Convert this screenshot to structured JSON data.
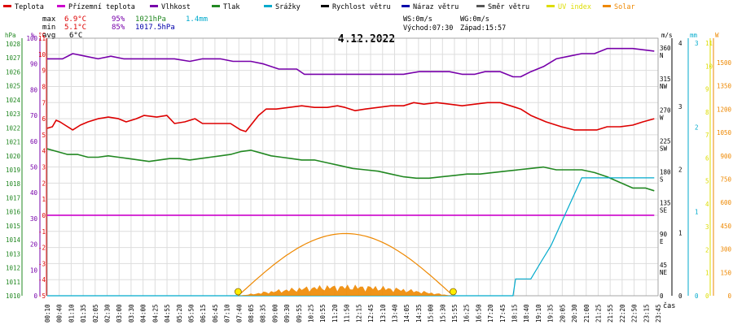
{
  "legend": [
    {
      "label": "Teplota",
      "color": "#dd0000"
    },
    {
      "label": "Přízemní teplota",
      "color": "#cc00cc"
    },
    {
      "label": "Vlhkost",
      "color": "#7700aa"
    },
    {
      "label": "Tlak",
      "color": "#228822"
    },
    {
      "label": "Srážky",
      "color": "#00aacc"
    },
    {
      "label": "Rychlost větru",
      "color": "#000000"
    },
    {
      "label": "Náraz větru",
      "color": "#0000aa"
    },
    {
      "label": "Směr větru",
      "color": "#555555"
    },
    {
      "label": "UV index",
      "color": "#dddd00"
    },
    {
      "label": "Solar",
      "color": "#ee8800"
    }
  ],
  "stats": {
    "max_label": "max",
    "max_temp": "6.9°C",
    "max_hum": "95%",
    "max_press": "1021hPa",
    "max_rain": "1.4mm",
    "min_label": "min",
    "min_temp": "5.1°C",
    "min_hum": "85%",
    "min_press": "1017.5hPa",
    "avg_label": "avg",
    "avg_temp": "6°C",
    "ws": "WS:0m/s",
    "wg": "WG:0m/s",
    "sunrise": "Východ:07:30",
    "sunset": "Západ:15:57"
  },
  "colors": {
    "temp": "#dd0000",
    "ground": "#cc00cc",
    "hum": "#7700aa",
    "press": "#228822",
    "rain": "#00aacc",
    "dir": "#555555",
    "uv": "#dddd00",
    "solar": "#ee8800",
    "grid": "#dddddd"
  },
  "chart_data": {
    "type": "line",
    "title": "4.12.2022",
    "x_label": "čas",
    "x_ticks": [
      "00:10",
      "00:40",
      "01:10",
      "01:35",
      "02:05",
      "02:30",
      "03:00",
      "03:30",
      "04:00",
      "04:25",
      "04:55",
      "05:20",
      "05:50",
      "06:15",
      "06:45",
      "07:10",
      "07:40",
      "08:05",
      "08:35",
      "09:00",
      "09:30",
      "09:55",
      "10:25",
      "10:55",
      "11:20",
      "11:50",
      "12:15",
      "12:45",
      "13:10",
      "13:40",
      "14:05",
      "14:35",
      "15:00",
      "15:30",
      "15:55",
      "16:25",
      "16:50",
      "17:20",
      "17:45",
      "18:15",
      "18:40",
      "19:10",
      "19:35",
      "20:05",
      "20:30",
      "21:00",
      "21:25",
      "21:55",
      "22:20",
      "22:50",
      "23:15",
      "23:45"
    ],
    "axes": {
      "pressure": {
        "unit": "hPa",
        "ticks": [
          "1028",
          "1027",
          "1026",
          "1025",
          "1024",
          "1023",
          "1022",
          "1021",
          "1020",
          "1019",
          "1018",
          "1017",
          "1016",
          "1015",
          "1014",
          "1013",
          "1012",
          "1011",
          "1010"
        ]
      },
      "humidity": {
        "unit": "%",
        "ticks": [
          "100",
          "90",
          "80",
          "70",
          "60",
          "50",
          "40",
          "30",
          "20",
          "10",
          "0"
        ]
      },
      "temperature": {
        "unit": "°C",
        "range": [
          -5,
          11
        ],
        "ticks": [
          "11",
          "10",
          "9",
          "8",
          "7",
          "6",
          "5",
          "4",
          "3",
          "2",
          "1",
          "0",
          "-1",
          "-2",
          "-3",
          "-4",
          "-5"
        ]
      },
      "wind_speed": {
        "unit": "m/s",
        "ticks": [
          "4",
          "3",
          "2",
          "1",
          "0"
        ]
      },
      "wind_dir": {
        "ticks": [
          "360\nN",
          "315\nNW",
          "270\nW",
          "225\nSW",
          "180\nS",
          "135\nSE",
          "90\nE",
          "45\nNE",
          "0"
        ]
      },
      "rain": {
        "unit": "mm",
        "ticks": [
          "3",
          "2",
          "1",
          "0"
        ]
      },
      "uv": {
        "ticks": [
          "11",
          "10",
          "9",
          "8",
          "7",
          "6",
          "5",
          "4",
          "3",
          "2",
          "1",
          "0"
        ]
      },
      "solar": {
        "unit": "W",
        "ticks": [
          "1500",
          "1350",
          "1200",
          "1050",
          "900",
          "750",
          "600",
          "450",
          "300",
          "150",
          "0"
        ]
      }
    },
    "series": [
      {
        "name": "Teplota",
        "axis": "temperature",
        "color": "#dd0000",
        "points": [
          [
            0,
            5.4
          ],
          [
            0.2,
            5.5
          ],
          [
            0.35,
            5.9
          ],
          [
            0.5,
            5.8
          ],
          [
            0.7,
            5.6
          ],
          [
            1.0,
            5.3
          ],
          [
            1.3,
            5.6
          ],
          [
            1.6,
            5.8
          ],
          [
            2.0,
            6.0
          ],
          [
            2.4,
            6.1
          ],
          [
            2.8,
            6.0
          ],
          [
            3.1,
            5.8
          ],
          [
            3.5,
            6.0
          ],
          [
            3.8,
            6.2
          ],
          [
            4.3,
            6.1
          ],
          [
            4.7,
            6.2
          ],
          [
            5.0,
            5.7
          ],
          [
            5.4,
            5.8
          ],
          [
            5.8,
            6.0
          ],
          [
            6.1,
            5.7
          ],
          [
            6.6,
            5.7
          ],
          [
            7.2,
            5.7
          ],
          [
            7.6,
            5.3
          ],
          [
            7.8,
            5.2
          ],
          [
            8.0,
            5.6
          ],
          [
            8.3,
            6.2
          ],
          [
            8.6,
            6.6
          ],
          [
            9.0,
            6.6
          ],
          [
            9.5,
            6.7
          ],
          [
            10.0,
            6.8
          ],
          [
            10.5,
            6.7
          ],
          [
            11.0,
            6.7
          ],
          [
            11.4,
            6.8
          ],
          [
            11.7,
            6.7
          ],
          [
            12.1,
            6.5
          ],
          [
            12.5,
            6.6
          ],
          [
            13.0,
            6.7
          ],
          [
            13.5,
            6.8
          ],
          [
            14.0,
            6.8
          ],
          [
            14.4,
            7.0
          ],
          [
            14.8,
            6.9
          ],
          [
            15.3,
            7.0
          ],
          [
            15.8,
            6.9
          ],
          [
            16.3,
            6.8
          ],
          [
            16.8,
            6.9
          ],
          [
            17.3,
            7.0
          ],
          [
            17.8,
            7.0
          ],
          [
            18.2,
            6.8
          ],
          [
            18.6,
            6.6
          ],
          [
            19.0,
            6.2
          ],
          [
            19.6,
            5.8
          ],
          [
            20.2,
            5.5
          ],
          [
            20.7,
            5.3
          ],
          [
            21.2,
            5.3
          ],
          [
            21.6,
            5.3
          ],
          [
            22.0,
            5.5
          ],
          [
            22.5,
            5.5
          ],
          [
            23.0,
            5.6
          ],
          [
            23.4,
            5.8
          ],
          [
            23.85,
            6.0
          ]
        ]
      },
      {
        "name": "Přízemní teplota",
        "axis": "temperature",
        "color": "#cc00cc",
        "points": [
          [
            0,
            0.0
          ],
          [
            23.85,
            0.0
          ]
        ]
      },
      {
        "name": "Vlhkost",
        "axis": "humidity",
        "color": "#7700aa",
        "points": [
          [
            0,
            92
          ],
          [
            0.6,
            92
          ],
          [
            1.0,
            94
          ],
          [
            1.5,
            93
          ],
          [
            2.0,
            92
          ],
          [
            2.5,
            93
          ],
          [
            3.0,
            92
          ],
          [
            3.5,
            92
          ],
          [
            4.0,
            92
          ],
          [
            4.5,
            92
          ],
          [
            5.0,
            92
          ],
          [
            5.6,
            91
          ],
          [
            6.1,
            92
          ],
          [
            6.8,
            92
          ],
          [
            7.3,
            91
          ],
          [
            8.0,
            91
          ],
          [
            8.5,
            90
          ],
          [
            9.1,
            88
          ],
          [
            9.8,
            88
          ],
          [
            10.1,
            86
          ],
          [
            11.0,
            86
          ],
          [
            12.0,
            86
          ],
          [
            13.0,
            86
          ],
          [
            14.0,
            86
          ],
          [
            14.6,
            87
          ],
          [
            15.2,
            87
          ],
          [
            15.8,
            87
          ],
          [
            16.3,
            86
          ],
          [
            16.8,
            86
          ],
          [
            17.2,
            87
          ],
          [
            17.8,
            87
          ],
          [
            18.3,
            85
          ],
          [
            18.6,
            85
          ],
          [
            19.0,
            87
          ],
          [
            19.5,
            89
          ],
          [
            20.0,
            92
          ],
          [
            20.5,
            93
          ],
          [
            21.0,
            94
          ],
          [
            21.5,
            94
          ],
          [
            22.0,
            96
          ],
          [
            22.5,
            96
          ],
          [
            23.0,
            96
          ],
          [
            23.85,
            95
          ]
        ]
      },
      {
        "name": "Tlak",
        "axis": "pressure",
        "color": "#228822",
        "points": [
          [
            0,
            1020.5
          ],
          [
            0.4,
            1020.3
          ],
          [
            0.8,
            1020.1
          ],
          [
            1.2,
            1020.1
          ],
          [
            1.6,
            1019.9
          ],
          [
            2.0,
            1019.9
          ],
          [
            2.4,
            1020.0
          ],
          [
            2.8,
            1019.9
          ],
          [
            3.2,
            1019.8
          ],
          [
            3.6,
            1019.7
          ],
          [
            4.0,
            1019.6
          ],
          [
            4.4,
            1019.7
          ],
          [
            4.8,
            1019.8
          ],
          [
            5.2,
            1019.8
          ],
          [
            5.6,
            1019.7
          ],
          [
            6.0,
            1019.8
          ],
          [
            6.4,
            1019.9
          ],
          [
            6.8,
            1020.0
          ],
          [
            7.2,
            1020.1
          ],
          [
            7.6,
            1020.3
          ],
          [
            8.0,
            1020.4
          ],
          [
            8.4,
            1020.2
          ],
          [
            8.8,
            1020.0
          ],
          [
            9.2,
            1019.9
          ],
          [
            9.6,
            1019.8
          ],
          [
            10.0,
            1019.7
          ],
          [
            10.5,
            1019.7
          ],
          [
            11.0,
            1019.5
          ],
          [
            11.5,
            1019.3
          ],
          [
            12.0,
            1019.1
          ],
          [
            12.5,
            1019.0
          ],
          [
            13.0,
            1018.9
          ],
          [
            13.5,
            1018.7
          ],
          [
            14.0,
            1018.5
          ],
          [
            14.5,
            1018.4
          ],
          [
            15.0,
            1018.4
          ],
          [
            15.5,
            1018.5
          ],
          [
            16.0,
            1018.6
          ],
          [
            16.5,
            1018.7
          ],
          [
            17.0,
            1018.7
          ],
          [
            17.5,
            1018.8
          ],
          [
            18.0,
            1018.9
          ],
          [
            18.5,
            1019.0
          ],
          [
            19.0,
            1019.1
          ],
          [
            19.5,
            1019.2
          ],
          [
            20.0,
            1019.0
          ],
          [
            20.5,
            1019.0
          ],
          [
            21.0,
            1019.0
          ],
          [
            21.5,
            1018.8
          ],
          [
            22.0,
            1018.5
          ],
          [
            22.5,
            1018.1
          ],
          [
            23.0,
            1017.7
          ],
          [
            23.5,
            1017.7
          ],
          [
            23.85,
            1017.5
          ]
        ]
      },
      {
        "name": "Srážky",
        "axis": "rain",
        "color": "#00aacc",
        "points": [
          [
            0,
            0
          ],
          [
            18.3,
            0
          ],
          [
            18.4,
            0.2
          ],
          [
            19.0,
            0.2
          ],
          [
            19.4,
            0.4
          ],
          [
            19.8,
            0.6
          ],
          [
            20.1,
            0.8
          ],
          [
            20.4,
            1.0
          ],
          [
            20.7,
            1.2
          ],
          [
            21.0,
            1.4
          ],
          [
            23.85,
            1.4
          ]
        ]
      },
      {
        "name": "Solar",
        "axis": "solar",
        "color": "#ee8800",
        "curve": {
          "start": 7.5,
          "end": 15.95,
          "peak": 400
        }
      }
    ]
  }
}
